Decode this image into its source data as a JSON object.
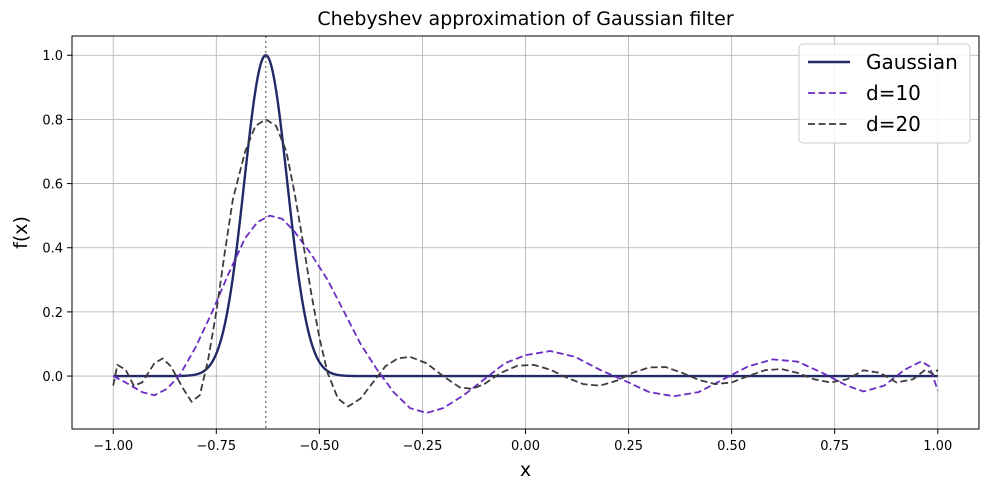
{
  "chart_data": {
    "type": "line",
    "title": "Chebyshev approximation of Gaussian filter",
    "xlabel": "x",
    "ylabel": "f(x)",
    "xlim": [
      -1.1,
      1.1
    ],
    "ylim": [
      -0.165,
      1.06
    ],
    "x_ticks": [
      -1.0,
      -0.75,
      -0.5,
      -0.25,
      0.0,
      0.25,
      0.5,
      0.75,
      1.0
    ],
    "x_tick_labels": [
      "−1.00",
      "−0.75",
      "−0.50",
      "−0.25",
      "0.00",
      "0.25",
      "0.50",
      "0.75",
      "1.00"
    ],
    "y_ticks": [
      0.0,
      0.2,
      0.4,
      0.6,
      0.8,
      1.0
    ],
    "y_tick_labels": [
      "0.0",
      "0.2",
      "0.4",
      "0.6",
      "0.8",
      "1.0"
    ],
    "grid": true,
    "legend_position": "top-right",
    "vertical_line": {
      "x": -0.63,
      "style": "dotted",
      "color": "#808080"
    },
    "series": [
      {
        "name": "Gaussian",
        "color": "#222a66",
        "style": "solid",
        "center": -0.63,
        "sigma": 0.052,
        "amplitude": 1.0
      },
      {
        "name": "d=10",
        "color": "#6a2cc4",
        "style": "dashed",
        "points": [
          [
            -1.0,
            0.0
          ],
          [
            -0.97,
            -0.02
          ],
          [
            -0.93,
            -0.05
          ],
          [
            -0.9,
            -0.06
          ],
          [
            -0.87,
            -0.04
          ],
          [
            -0.84,
            0.0
          ],
          [
            -0.8,
            0.09
          ],
          [
            -0.76,
            0.2
          ],
          [
            -0.72,
            0.32
          ],
          [
            -0.68,
            0.43
          ],
          [
            -0.65,
            0.48
          ],
          [
            -0.62,
            0.5
          ],
          [
            -0.59,
            0.49
          ],
          [
            -0.56,
            0.45
          ],
          [
            -0.52,
            0.38
          ],
          [
            -0.48,
            0.3
          ],
          [
            -0.44,
            0.2
          ],
          [
            -0.4,
            0.1
          ],
          [
            -0.36,
            0.02
          ],
          [
            -0.32,
            -0.05
          ],
          [
            -0.28,
            -0.1
          ],
          [
            -0.24,
            -0.115
          ],
          [
            -0.2,
            -0.1
          ],
          [
            -0.15,
            -0.06
          ],
          [
            -0.1,
            -0.01
          ],
          [
            -0.05,
            0.04
          ],
          [
            0.0,
            0.065
          ],
          [
            0.06,
            0.078
          ],
          [
            0.12,
            0.06
          ],
          [
            0.18,
            0.02
          ],
          [
            0.25,
            -0.02
          ],
          [
            0.3,
            -0.05
          ],
          [
            0.36,
            -0.063
          ],
          [
            0.42,
            -0.05
          ],
          [
            0.48,
            -0.01
          ],
          [
            0.54,
            0.03
          ],
          [
            0.6,
            0.052
          ],
          [
            0.66,
            0.045
          ],
          [
            0.72,
            0.01
          ],
          [
            0.78,
            -0.03
          ],
          [
            0.82,
            -0.048
          ],
          [
            0.87,
            -0.03
          ],
          [
            0.92,
            0.02
          ],
          [
            0.96,
            0.046
          ],
          [
            0.98,
            0.03
          ],
          [
            1.0,
            -0.045
          ]
        ]
      },
      {
        "name": "d=20",
        "color": "#3d3d3d",
        "style": "dashed",
        "points": [
          [
            -1.0,
            -0.03
          ],
          [
            -0.99,
            0.035
          ],
          [
            -0.97,
            0.02
          ],
          [
            -0.95,
            -0.03
          ],
          [
            -0.93,
            -0.02
          ],
          [
            -0.9,
            0.04
          ],
          [
            -0.88,
            0.055
          ],
          [
            -0.86,
            0.03
          ],
          [
            -0.83,
            -0.04
          ],
          [
            -0.81,
            -0.08
          ],
          [
            -0.79,
            -0.06
          ],
          [
            -0.77,
            0.05
          ],
          [
            -0.75,
            0.2
          ],
          [
            -0.73,
            0.38
          ],
          [
            -0.71,
            0.55
          ],
          [
            -0.68,
            0.7
          ],
          [
            -0.655,
            0.78
          ],
          [
            -0.63,
            0.8
          ],
          [
            -0.605,
            0.78
          ],
          [
            -0.58,
            0.7
          ],
          [
            -0.56,
            0.57
          ],
          [
            -0.54,
            0.42
          ],
          [
            -0.52,
            0.26
          ],
          [
            -0.5,
            0.12
          ],
          [
            -0.48,
            0.01
          ],
          [
            -0.455,
            -0.07
          ],
          [
            -0.43,
            -0.095
          ],
          [
            -0.4,
            -0.07
          ],
          [
            -0.37,
            -0.02
          ],
          [
            -0.34,
            0.03
          ],
          [
            -0.31,
            0.055
          ],
          [
            -0.28,
            0.06
          ],
          [
            -0.24,
            0.04
          ],
          [
            -0.2,
            0.0
          ],
          [
            -0.16,
            -0.035
          ],
          [
            -0.13,
            -0.04
          ],
          [
            -0.1,
            -0.025
          ],
          [
            -0.06,
            0.01
          ],
          [
            -0.02,
            0.032
          ],
          [
            0.02,
            0.035
          ],
          [
            0.06,
            0.02
          ],
          [
            0.1,
            -0.005
          ],
          [
            0.14,
            -0.025
          ],
          [
            0.18,
            -0.03
          ],
          [
            0.22,
            -0.015
          ],
          [
            0.26,
            0.01
          ],
          [
            0.3,
            0.027
          ],
          [
            0.34,
            0.028
          ],
          [
            0.38,
            0.01
          ],
          [
            0.42,
            -0.012
          ],
          [
            0.46,
            -0.025
          ],
          [
            0.5,
            -0.02
          ],
          [
            0.54,
            0.0
          ],
          [
            0.58,
            0.018
          ],
          [
            0.62,
            0.022
          ],
          [
            0.66,
            0.01
          ],
          [
            0.7,
            -0.01
          ],
          [
            0.74,
            -0.02
          ],
          [
            0.78,
            -0.01
          ],
          [
            0.82,
            0.018
          ],
          [
            0.86,
            0.01
          ],
          [
            0.9,
            -0.02
          ],
          [
            0.94,
            -0.01
          ],
          [
            0.97,
            0.02
          ],
          [
            0.99,
            0.005
          ],
          [
            1.0,
            0.02
          ]
        ]
      }
    ]
  }
}
